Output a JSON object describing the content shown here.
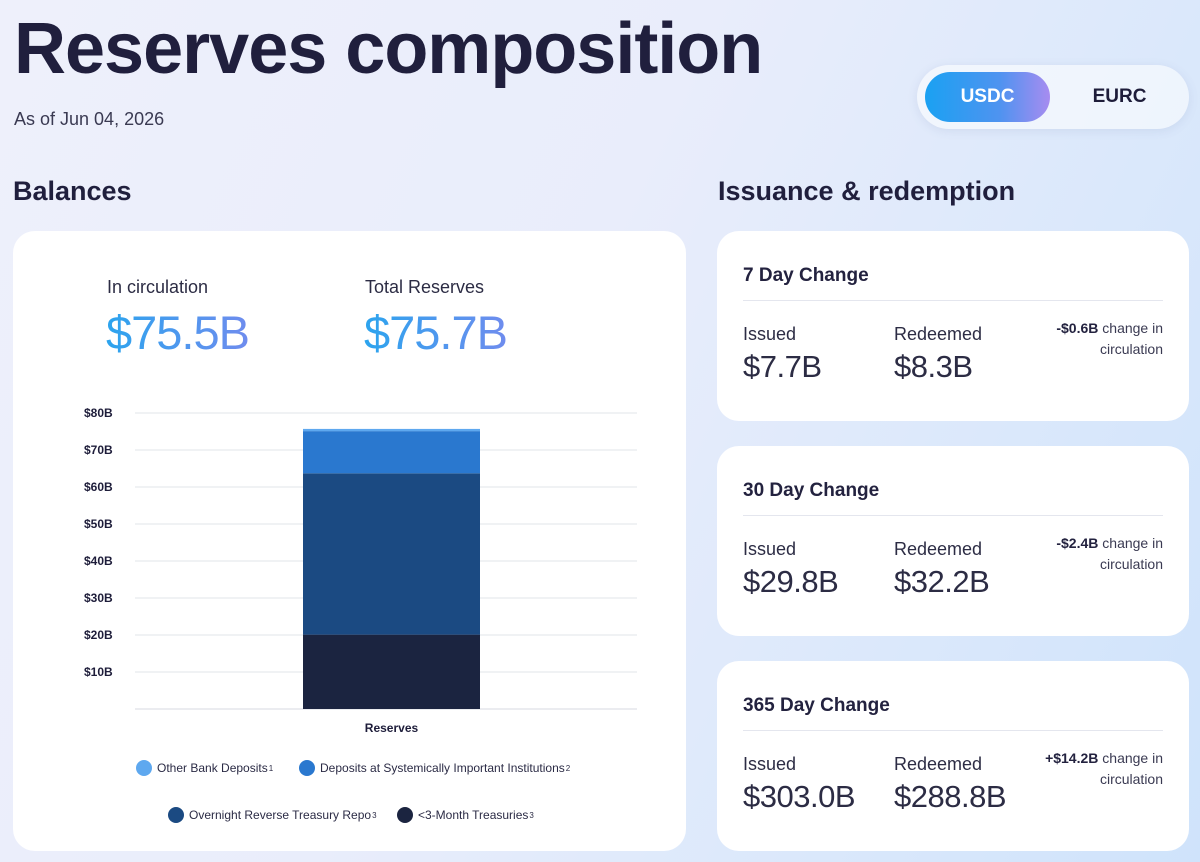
{
  "page": {
    "title": "Reserves composition",
    "as_of": "As of Jun 04, 2026"
  },
  "toggle": {
    "options": [
      "USDC",
      "EURC"
    ],
    "selected": "USDC"
  },
  "balances": {
    "section_title": "Balances",
    "in_circulation_label": "In circulation",
    "in_circulation_value": "$75.5B",
    "total_reserves_label": "Total Reserves",
    "total_reserves_value": "$75.7B"
  },
  "chart_data": {
    "type": "bar",
    "stacked": true,
    "categories": [
      "Reserves"
    ],
    "y_tick_labels": [
      "$10B",
      "$20B",
      "$30B",
      "$40B",
      "$50B",
      "$60B",
      "$70B",
      "$80B"
    ],
    "ylim": [
      0,
      80
    ],
    "grid": true,
    "legend_position": "bottom",
    "series": [
      {
        "name": "<3-Month Treasuries",
        "sup": "3",
        "values": [
          20.1
        ],
        "color": "#1b2440"
      },
      {
        "name": "Overnight Reverse Treasury Repo",
        "sup": "3",
        "values": [
          43.6
        ],
        "color": "#1b4a82"
      },
      {
        "name": "Deposits at Systemically Important Institutions",
        "sup": "2",
        "values": [
          11.4
        ],
        "color": "#2a78cf"
      },
      {
        "name": "Other Bank Deposits",
        "sup": "1",
        "values": [
          0.6
        ],
        "color": "#5ea8ef"
      }
    ]
  },
  "issuance": {
    "section_title": "Issuance & redemption",
    "issued_label": "Issued",
    "redeemed_label": "Redeemed",
    "net_suffix": "change in circulation",
    "periods": [
      {
        "title": "7 Day Change",
        "issued": "$7.7B",
        "redeemed": "$8.3B",
        "net": "-$0.6B"
      },
      {
        "title": "30 Day Change",
        "issued": "$29.8B",
        "redeemed": "$32.2B",
        "net": "-$2.4B"
      },
      {
        "title": "365 Day Change",
        "issued": "$303.0B",
        "redeemed": "$288.8B",
        "net": "+$14.2B"
      }
    ]
  }
}
